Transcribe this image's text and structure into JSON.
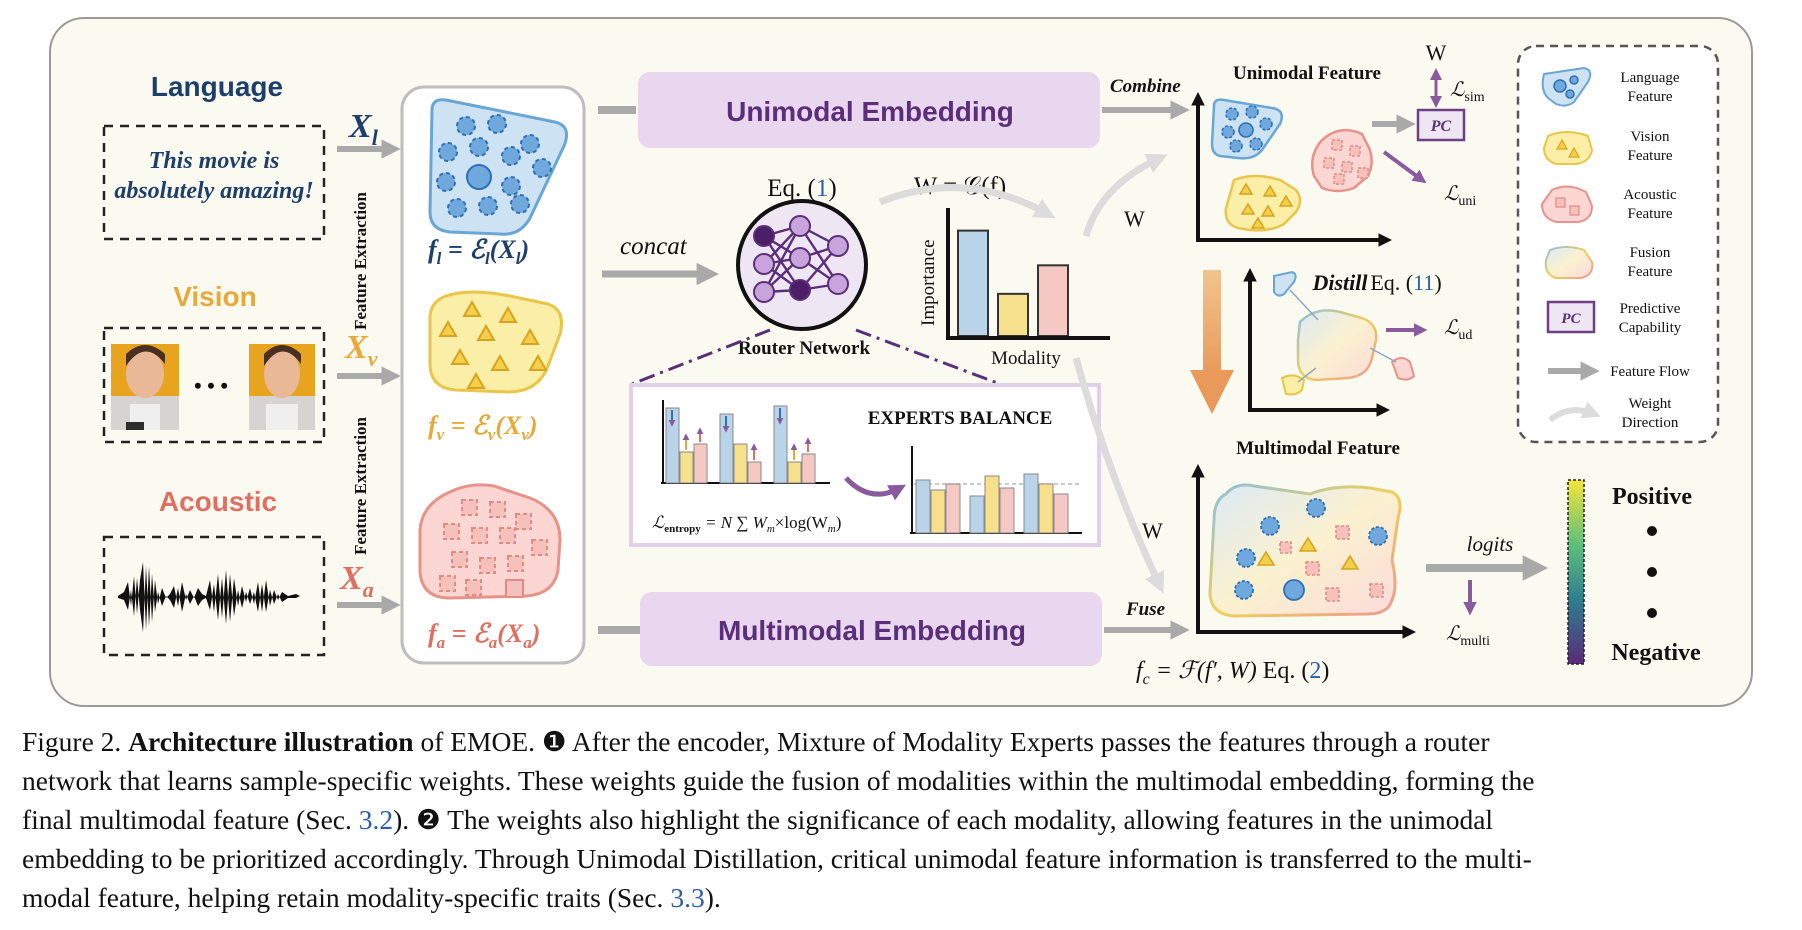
{
  "inputs": {
    "language_title": "Language",
    "language_text_1": "This movie is",
    "language_text_2": "absolutely amazing!",
    "vision_title": "Vision",
    "acoustic_title": "Acoustic",
    "x_l": "X",
    "x_l_sub": "l",
    "x_v": "X",
    "x_v_sub": "v",
    "x_a": "X",
    "x_a_sub": "a",
    "feature_extraction_1": "Feature Extraction",
    "feature_extraction_2": "Feature Extraction",
    "dots": "• • •"
  },
  "encoders": {
    "f_l": "f",
    "f_l_sub": "l",
    "f_l_rhs": " = ℰ",
    "f_l_arg": "(X",
    "f_l_close": ")",
    "f_v": "f",
    "f_v_sub": "v",
    "f_v_rhs": " = ℰ",
    "f_v_arg": "(X",
    "f_v_close": ")",
    "f_a": "f",
    "f_a_sub": "a",
    "f_a_rhs": " = ℰ",
    "f_a_arg": "(X",
    "f_a_close": ")"
  },
  "router": {
    "concat": "concat",
    "eq_prefix": "Eq. (",
    "eq_ref": "1",
    "eq_suffix": ")",
    "label": "Router Network",
    "weight_formula": "W = 𝒢(f)",
    "importance": "Importance",
    "modality": "Modality",
    "bar_values": [
      0.85,
      0.34,
      0.57
    ],
    "bar_colors": [
      "#b9d3e8",
      "#f6e08b",
      "#f6c8c4"
    ]
  },
  "experts": {
    "title": "EXPERTS BALANCE",
    "loss_lhs": "ℒ",
    "loss_lhs_sub": "entropy",
    "loss_rhs": " = N ∑ W",
    "loss_rhs_sub": "m",
    "loss_tail": "×log(W",
    "loss_tail_sub": "m",
    "loss_end": ")"
  },
  "embeddings": {
    "unimodal": "Unimodal Embedding",
    "multimodal": "Multimodal Embedding",
    "combine": "Combine",
    "fuse": "Fuse",
    "w_upper": "W",
    "w_lower": "W"
  },
  "unimodal_feature": {
    "title": "Unimodal Feature",
    "w_top": "W",
    "l_sim": "ℒ",
    "l_sim_sub": "sim",
    "pc": "PC",
    "l_uni": "ℒ",
    "l_uni_sub": "uni"
  },
  "distill": {
    "label": "Distill",
    "eq_prefix": "Eq. (",
    "eq_ref": "11",
    "eq_suffix": ")",
    "l_ud": "ℒ",
    "l_ud_sub": "ud"
  },
  "multimodal_feature": {
    "title": "Multimodal Feature",
    "logits": "logits",
    "l_multi": "ℒ",
    "l_multi_sub": "multi",
    "fc_lhs": "f",
    "fc_sub": "c",
    "fc_rhs": " = ℱ(f′, W)",
    "eq_prefix": " Eq. (",
    "eq_ref": "2",
    "eq_suffix": ")"
  },
  "output": {
    "positive": "Positive",
    "negative": "Negative"
  },
  "legend": {
    "language_1": "Language",
    "language_2": "Feature",
    "vision_1": "Vision",
    "vision_2": "Feature",
    "acoustic_1": "Acoustic",
    "acoustic_2": "Feature",
    "fusion_1": "Fusion",
    "fusion_2": "Feature",
    "pc_badge": "PC",
    "predictive_1": "Predictive",
    "predictive_2": "Capability",
    "feature_flow": "Feature Flow",
    "weight_1": "Weight",
    "weight_2": "Direction"
  },
  "caption": {
    "fig": "Figure 2. ",
    "bold": "Architecture illustration",
    "l1": " of EMOE. ❶ After the encoder, Mixture of Modality Experts passes the features through a router",
    "l2": "network that learns sample-specific weights. These weights guide the fusion of modalities within the multimodal embedding, forming the",
    "l3a": "final multimodal feature (Sec. ",
    "ref1": "3.2",
    "l3b": "). ❷ The weights also highlight the significance of each modality, allowing features in the unimodal",
    "l4": "embedding to be prioritized accordingly. Through Unimodal Distillation, critical unimodal feature information is transferred to the multi-",
    "l5a": "modal feature, helping retain modality-specific traits (Sec. ",
    "ref2": "3.3",
    "l5b": ")."
  },
  "colors": {
    "language": "#1f3f6b",
    "vision": "#e8a93a",
    "acoustic": "#e06f62",
    "purple": "#6c3f86",
    "embedding_fill": "#e8d7ef",
    "panel": "#fbfaf1",
    "ref": "#2b5fa8"
  }
}
